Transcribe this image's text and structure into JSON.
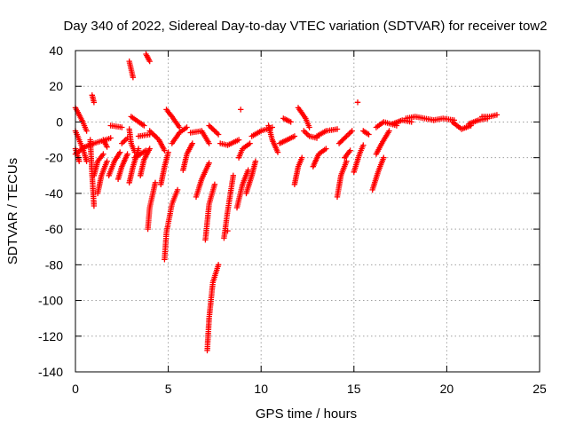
{
  "chart_data": {
    "type": "scatter",
    "title": "Day 340 of 2022, Sidereal Day-to-day VTEC variation (SDTVAR) for receiver tow2",
    "xlabel": "GPS time / hours",
    "ylabel": "SDTVAR / TECUs",
    "xlim": [
      0,
      25
    ],
    "ylim": [
      -140,
      40
    ],
    "xticks": [
      0,
      5,
      10,
      15,
      20,
      25
    ],
    "yticks": [
      -140,
      -120,
      -100,
      -80,
      -60,
      -40,
      -20,
      0,
      20,
      40
    ],
    "grid": true,
    "marker": "plus",
    "marker_color": "#ff0000",
    "series": [
      {
        "name": "SDTVAR",
        "segments": [
          [
            [
              0.0,
              -5
            ],
            [
              0.4,
              -15
            ],
            [
              0.6,
              -22
            ]
          ],
          [
            [
              0.0,
              8
            ],
            [
              0.4,
              0
            ],
            [
              0.6,
              -5
            ]
          ],
          [
            [
              0.0,
              -15
            ],
            [
              0.2,
              -22
            ]
          ],
          [
            [
              0.0,
              -18
            ],
            [
              0.5,
              -14
            ],
            [
              1.0,
              -12
            ],
            [
              1.9,
              -9
            ]
          ],
          [
            [
              0.8,
              -10
            ],
            [
              0.9,
              -30
            ],
            [
              1.0,
              -47
            ]
          ],
          [
            [
              0.9,
              15
            ],
            [
              1.0,
              11
            ]
          ],
          [
            [
              1.0,
              -30
            ],
            [
              1.2,
              -22
            ],
            [
              1.5,
              -18
            ]
          ],
          [
            [
              1.2,
              -40
            ],
            [
              1.4,
              -30
            ],
            [
              1.7,
              -22
            ]
          ],
          [
            [
              1.5,
              -10
            ],
            [
              1.7,
              -14
            ]
          ],
          [
            [
              1.8,
              -30
            ],
            [
              2.1,
              -22
            ],
            [
              2.4,
              -17
            ]
          ],
          [
            [
              1.9,
              -2
            ],
            [
              2.5,
              -3
            ]
          ],
          [
            [
              2.3,
              -32
            ],
            [
              2.5,
              -25
            ],
            [
              2.8,
              -18
            ]
          ],
          [
            [
              2.5,
              -12
            ],
            [
              2.8,
              -9
            ]
          ],
          [
            [
              2.9,
              -4
            ],
            [
              3.0,
              -12
            ],
            [
              3.2,
              -17
            ]
          ],
          [
            [
              3.0,
              3
            ],
            [
              3.4,
              0
            ],
            [
              3.7,
              -2
            ]
          ],
          [
            [
              2.9,
              -34
            ],
            [
              3.1,
              -25
            ],
            [
              3.4,
              -15
            ]
          ],
          [
            [
              2.9,
              34
            ],
            [
              3.1,
              25
            ]
          ],
          [
            [
              3.2,
              -20
            ],
            [
              3.5,
              -18
            ],
            [
              3.8,
              -16
            ]
          ],
          [
            [
              3.5,
              -30
            ],
            [
              3.7,
              -21
            ],
            [
              4.0,
              -15
            ]
          ],
          [
            [
              3.4,
              -8
            ],
            [
              4.0,
              -7
            ]
          ],
          [
            [
              3.8,
              38
            ],
            [
              4.0,
              34
            ]
          ],
          [
            [
              3.9,
              -60
            ],
            [
              4.0,
              -48
            ],
            [
              4.3,
              -34
            ]
          ],
          [
            [
              4.0,
              -5
            ],
            [
              4.5,
              -10
            ],
            [
              4.8,
              -16
            ]
          ],
          [
            [
              4.6,
              -35
            ],
            [
              4.8,
              -25
            ],
            [
              5.0,
              -17
            ]
          ],
          [
            [
              4.8,
              -77
            ],
            [
              4.9,
              -62
            ],
            [
              5.2,
              -46
            ],
            [
              5.5,
              -38
            ]
          ],
          [
            [
              4.9,
              7
            ],
            [
              5.2,
              3
            ],
            [
              5.6,
              -3
            ]
          ],
          [
            [
              5.2,
              -12
            ],
            [
              5.6,
              -6
            ],
            [
              6.0,
              -3
            ]
          ],
          [
            [
              5.8,
              -27
            ],
            [
              6.0,
              -18
            ],
            [
              6.3,
              -12
            ]
          ],
          [
            [
              6.2,
              -6
            ],
            [
              6.8,
              -5
            ],
            [
              7.2,
              -12
            ]
          ],
          [
            [
              6.5,
              -42
            ],
            [
              6.8,
              -32
            ],
            [
              7.2,
              -23
            ]
          ],
          [
            [
              7.0,
              -66
            ],
            [
              7.2,
              -46
            ],
            [
              7.5,
              -35
            ]
          ],
          [
            [
              7.1,
              -128
            ],
            [
              7.2,
              -110
            ],
            [
              7.4,
              -90
            ],
            [
              7.7,
              -80
            ]
          ],
          [
            [
              7.2,
              -2
            ],
            [
              7.7,
              -7
            ]
          ],
          [
            [
              7.8,
              -12
            ],
            [
              8.2,
              -13
            ],
            [
              8.8,
              -10
            ]
          ],
          [
            [
              8.0,
              -65
            ],
            [
              8.2,
              -50
            ],
            [
              8.5,
              -30
            ]
          ],
          [
            [
              8.2,
              -61
            ]
          ],
          [
            [
              8.7,
              -48
            ],
            [
              9.0,
              -35
            ],
            [
              9.3,
              -27
            ]
          ],
          [
            [
              8.8,
              -20
            ],
            [
              9.0,
              -15
            ],
            [
              9.4,
              -12
            ]
          ],
          [
            [
              8.9,
              7
            ]
          ],
          [
            [
              9.2,
              -40
            ],
            [
              9.5,
              -30
            ],
            [
              9.7,
              -22
            ]
          ],
          [
            [
              9.5,
              -8
            ],
            [
              10.0,
              -5
            ],
            [
              10.6,
              -3
            ]
          ],
          [
            [
              10.4,
              -2
            ],
            [
              10.6,
              -10
            ],
            [
              10.9,
              -17
            ]
          ],
          [
            [
              11.0,
              -12
            ],
            [
              11.4,
              -10
            ],
            [
              11.8,
              -8
            ]
          ],
          [
            [
              11.2,
              2
            ],
            [
              11.6,
              0
            ]
          ],
          [
            [
              11.8,
              -35
            ],
            [
              12.0,
              -25
            ],
            [
              12.2,
              -20
            ]
          ],
          [
            [
              12.0,
              8
            ],
            [
              12.4,
              2
            ],
            [
              12.6,
              -3
            ]
          ],
          [
            [
              12.3,
              -5
            ],
            [
              12.6,
              -8
            ],
            [
              13.0,
              -9
            ]
          ],
          [
            [
              12.8,
              -25
            ],
            [
              13.1,
              -18
            ],
            [
              13.5,
              -15
            ]
          ],
          [
            [
              13.0,
              -8
            ],
            [
              13.5,
              -5
            ],
            [
              14.1,
              -4
            ]
          ],
          [
            [
              14.1,
              -42
            ],
            [
              14.3,
              -30
            ],
            [
              14.6,
              -22
            ]
          ],
          [
            [
              14.2,
              -12
            ],
            [
              14.6,
              -8
            ],
            [
              14.9,
              -5
            ]
          ],
          [
            [
              14.5,
              -20
            ],
            [
              14.8,
              -16
            ]
          ],
          [
            [
              15.0,
              -28
            ],
            [
              15.3,
              -18
            ],
            [
              15.5,
              -13
            ]
          ],
          [
            [
              15.2,
              11
            ]
          ],
          [
            [
              15.5,
              -5
            ],
            [
              15.8,
              -7
            ]
          ],
          [
            [
              16.0,
              -38
            ],
            [
              16.3,
              -28
            ],
            [
              16.6,
              -20
            ]
          ],
          [
            [
              16.2,
              -18
            ],
            [
              16.5,
              -12
            ],
            [
              16.9,
              -5
            ]
          ],
          [
            [
              16.2,
              -3
            ],
            [
              16.6,
              0
            ],
            [
              17.3,
              -2
            ]
          ],
          [
            [
              17.1,
              -1
            ],
            [
              17.6,
              1
            ],
            [
              18.1,
              0
            ]
          ],
          [
            [
              17.8,
              2
            ],
            [
              18.3,
              3
            ],
            [
              18.8,
              2
            ],
            [
              19.3,
              1
            ]
          ],
          [
            [
              19.3,
              1
            ],
            [
              19.8,
              2
            ],
            [
              20.4,
              1
            ]
          ],
          [
            [
              20.3,
              0
            ],
            [
              20.8,
              -4
            ],
            [
              21.3,
              -2
            ]
          ],
          [
            [
              21.2,
              -1
            ],
            [
              21.7,
              1
            ],
            [
              22.2,
              2
            ]
          ],
          [
            [
              21.9,
              3
            ],
            [
              22.3,
              3
            ],
            [
              22.7,
              4
            ]
          ]
        ]
      }
    ]
  }
}
